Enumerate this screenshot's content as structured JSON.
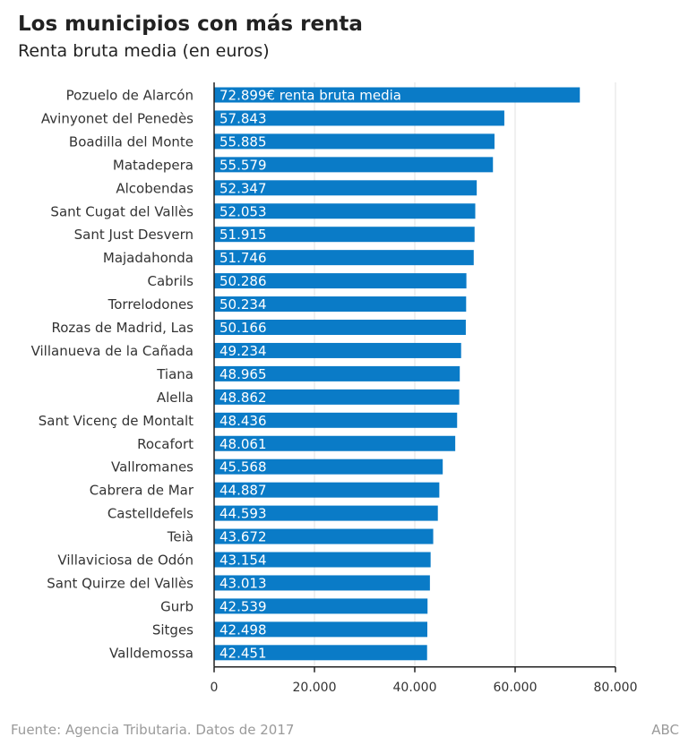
{
  "header": {
    "title": "Los municipios con más renta",
    "subtitle": "Renta bruta media (en euros)"
  },
  "footer": {
    "source": "Fuente: Agencia Tributaria. Datos de 2017",
    "brand": "ABC"
  },
  "colors": {
    "bar": "#0a7bc7",
    "bar_label": "#ffffff",
    "grid": "#e0e0e0",
    "axis": "#222222",
    "text": "#333333"
  },
  "chart_data": {
    "type": "bar",
    "orientation": "horizontal",
    "title": "Los municipios con más renta",
    "subtitle": "Renta bruta media (en euros)",
    "xlabel": "",
    "ylabel": "",
    "xlim": [
      0,
      80000
    ],
    "grid": true,
    "xticks": [
      0,
      20000,
      40000,
      60000,
      80000
    ],
    "xtick_labels": [
      "0",
      "20.000",
      "40.000",
      "60.000",
      "80.000"
    ],
    "categories": [
      "Pozuelo de Alarcón",
      "Avinyonet del Penedès",
      "Boadilla del Monte",
      "Matadepera",
      "Alcobendas",
      "Sant Cugat del Vallès",
      "Sant Just Desvern",
      "Majadahonda",
      "Cabrils",
      "Torrelodones",
      "Rozas de Madrid, Las",
      "Villanueva de la Cañada",
      "Tiana",
      "Alella",
      "Sant Vicenç de Montalt",
      "Rocafort",
      "Vallromanes",
      "Cabrera de Mar",
      "Castelldefels",
      "Teià",
      "Villaviciosa de Odón",
      "Sant Quirze del Vallès",
      "Gurb",
      "Sitges",
      "Valldemossa"
    ],
    "values": [
      72899,
      57843,
      55885,
      55579,
      52347,
      52053,
      51915,
      51746,
      50286,
      50234,
      50166,
      49234,
      48965,
      48862,
      48436,
      48061,
      45568,
      44887,
      44593,
      43672,
      43154,
      43013,
      42539,
      42498,
      42451
    ],
    "data_labels": [
      "72.899€ renta bruta media",
      "57.843",
      "55.885",
      "55.579",
      "52.347",
      "52.053",
      "51.915",
      "51.746",
      "50.286",
      "50.234",
      "50.166",
      "49.234",
      "48.965",
      "48.862",
      "48.436",
      "48.061",
      "45.568",
      "44.887",
      "44.593",
      "43.672",
      "43.154",
      "43.013",
      "42.539",
      "42.498",
      "42.451"
    ]
  }
}
